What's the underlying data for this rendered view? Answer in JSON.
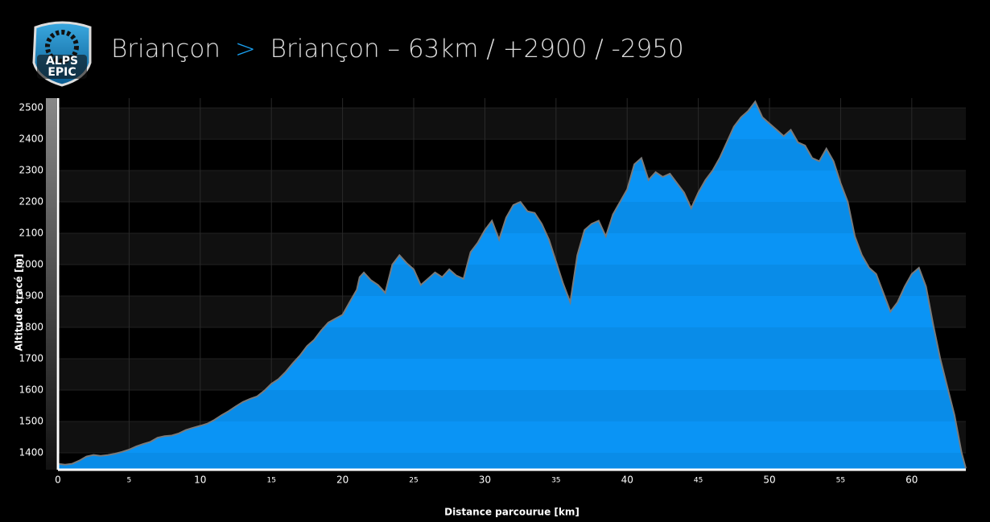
{
  "logo": [
    "ALPS",
    "EPIC"
  ],
  "chart_data": {
    "type": "area",
    "title": [
      "Briançon",
      ">",
      "Briançon – 63km / +2900 / -2950"
    ],
    "x_label": "Distance parcourue [km]",
    "y_label": "Altitude tracé [m]",
    "x": [
      0,
      0.5,
      1,
      1.5,
      2,
      2.5,
      3,
      3.5,
      4,
      4.5,
      5,
      5.5,
      6,
      6.5,
      7,
      7.5,
      8,
      8.5,
      9,
      9.5,
      10,
      10.5,
      11,
      11.5,
      12,
      12.5,
      13,
      13.5,
      14,
      14.5,
      15,
      15.5,
      16,
      16.5,
      17,
      17.5,
      18,
      18.5,
      19,
      19.5,
      20,
      20.5,
      21,
      21.2,
      21.5,
      22,
      22.5,
      23,
      23.5,
      24,
      24.5,
      25,
      25.5,
      26,
      26.5,
      27,
      27.5,
      28,
      28.5,
      29,
      29.5,
      30,
      30.5,
      31,
      31.5,
      32,
      32.5,
      33,
      33.5,
      34,
      34.5,
      35,
      35.5,
      36,
      36.5,
      37,
      37.5,
      38,
      38.5,
      39,
      39.5,
      40,
      40.5,
      41,
      41.5,
      42,
      42.5,
      43,
      43.5,
      44,
      44.5,
      45,
      45.5,
      46,
      46.5,
      47,
      47.5,
      48,
      48.5,
      49,
      49.5,
      50,
      50.5,
      51,
      51.5,
      52,
      52.5,
      53,
      53.5,
      54,
      54.5,
      55,
      55.5,
      56,
      56.5,
      57,
      57.5,
      58,
      58.5,
      59,
      59.5,
      60,
      60.5,
      61,
      61.5,
      62,
      62.5,
      63,
      63.5,
      63.8
    ],
    "series": [
      {
        "name": "Altitude",
        "color": "#0a94f5",
        "line_color": "#7a7a7a",
        "values": [
          1365,
          1362,
          1365,
          1375,
          1388,
          1393,
          1390,
          1393,
          1397,
          1403,
          1410,
          1420,
          1428,
          1435,
          1448,
          1453,
          1455,
          1462,
          1473,
          1480,
          1486,
          1493,
          1505,
          1520,
          1533,
          1548,
          1562,
          1572,
          1580,
          1598,
          1620,
          1635,
          1658,
          1685,
          1710,
          1740,
          1760,
          1790,
          1815,
          1828,
          1840,
          1880,
          1920,
          1960,
          1975,
          1950,
          1935,
          1910,
          2000,
          2030,
          2005,
          1985,
          1935,
          1955,
          1975,
          1960,
          1985,
          1965,
          1955,
          2040,
          2070,
          2110,
          2140,
          2080,
          2150,
          2190,
          2200,
          2170,
          2165,
          2130,
          2080,
          2010,
          1940,
          1880,
          2030,
          2110,
          2130,
          2140,
          2090,
          2160,
          2200,
          2240,
          2320,
          2340,
          2270,
          2295,
          2280,
          2290,
          2260,
          2230,
          2180,
          2230,
          2270,
          2300,
          2340,
          2390,
          2440,
          2470,
          2490,
          2520,
          2470,
          2450,
          2430,
          2410,
          2430,
          2390,
          2380,
          2340,
          2330,
          2370,
          2330,
          2260,
          2200,
          2090,
          2030,
          1990,
          1970,
          1910,
          1850,
          1880,
          1930,
          1970,
          1990,
          1930,
          1810,
          1700,
          1610,
          1520,
          1400,
          1350
        ]
      }
    ],
    "xlim": [
      0,
      63.8
    ],
    "ylim": [
      1346,
      2531
    ],
    "xticks": [
      0,
      5,
      10,
      15,
      20,
      25,
      30,
      35,
      40,
      45,
      50,
      55,
      60
    ],
    "yticks": [
      1400,
      1500,
      1600,
      1700,
      1800,
      1900,
      2000,
      2100,
      2200,
      2300,
      2400,
      2500
    ],
    "grid": true
  }
}
